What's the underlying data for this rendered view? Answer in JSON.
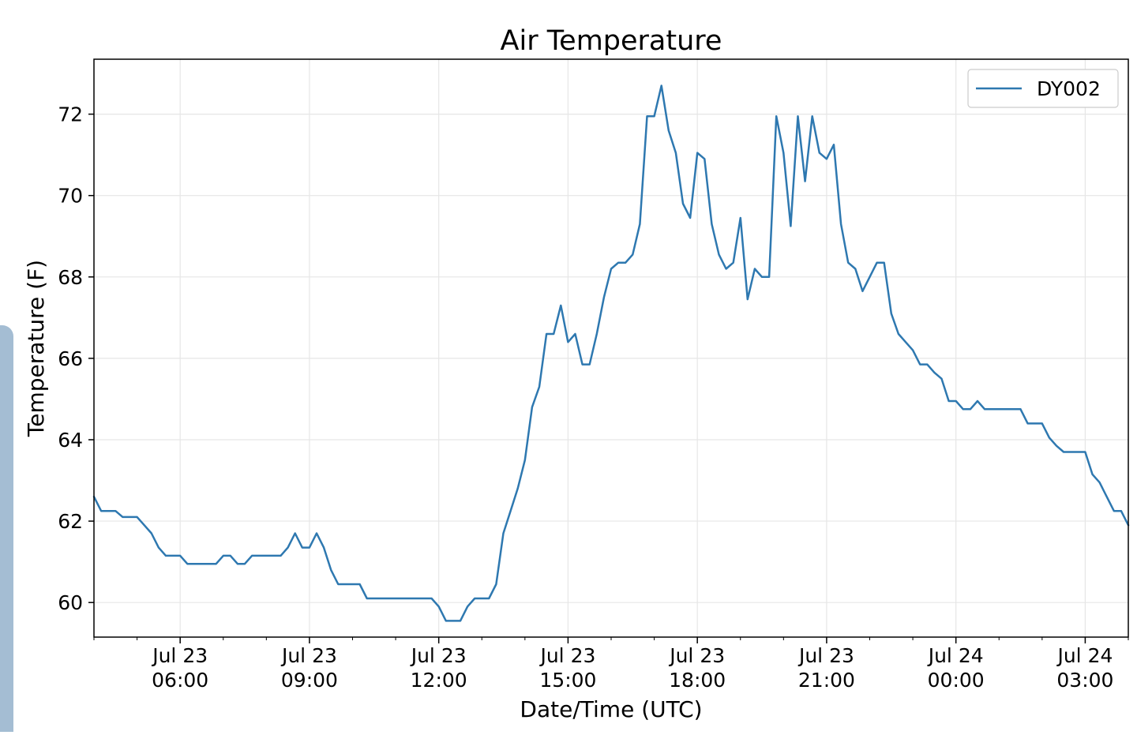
{
  "chart_data": {
    "type": "line",
    "title": "Air Temperature",
    "xlabel": "Date/Time (UTC)",
    "ylabel": "Temperature (F)",
    "x_ticks": [
      {
        "t": "2023-07-23T06:00",
        "line1": "Jul 23",
        "line2": "06:00"
      },
      {
        "t": "2023-07-23T09:00",
        "line1": "Jul 23",
        "line2": "09:00"
      },
      {
        "t": "2023-07-23T12:00",
        "line1": "Jul 23",
        "line2": "12:00"
      },
      {
        "t": "2023-07-23T15:00",
        "line1": "Jul 23",
        "line2": "15:00"
      },
      {
        "t": "2023-07-23T18:00",
        "line1": "Jul 23",
        "line2": "18:00"
      },
      {
        "t": "2023-07-23T21:00",
        "line1": "Jul 23",
        "line2": "21:00"
      },
      {
        "t": "2023-07-24T00:00",
        "line1": "Jul 24",
        "line2": "00:00"
      },
      {
        "t": "2023-07-24T03:00",
        "line1": "Jul 24",
        "line2": "03:00"
      }
    ],
    "y_ticks": [
      60,
      62,
      64,
      66,
      68,
      70,
      72
    ],
    "xlim": [
      "2023-07-23T04:00",
      "2023-07-24T04:00"
    ],
    "ylim": [
      59.15,
      73.35
    ],
    "grid": true,
    "legend_position": "top-right",
    "line_color": "#2e78b0",
    "series": [
      {
        "name": "DY002",
        "x": [
          "2023-07-23T04:00",
          "2023-07-23T04:10",
          "2023-07-23T04:20",
          "2023-07-23T04:30",
          "2023-07-23T04:40",
          "2023-07-23T04:50",
          "2023-07-23T05:00",
          "2023-07-23T05:10",
          "2023-07-23T05:20",
          "2023-07-23T05:30",
          "2023-07-23T05:40",
          "2023-07-23T05:50",
          "2023-07-23T06:00",
          "2023-07-23T06:10",
          "2023-07-23T06:20",
          "2023-07-23T06:30",
          "2023-07-23T06:40",
          "2023-07-23T06:50",
          "2023-07-23T07:00",
          "2023-07-23T07:10",
          "2023-07-23T07:20",
          "2023-07-23T07:30",
          "2023-07-23T07:40",
          "2023-07-23T07:50",
          "2023-07-23T08:00",
          "2023-07-23T08:10",
          "2023-07-23T08:20",
          "2023-07-23T08:30",
          "2023-07-23T08:40",
          "2023-07-23T08:50",
          "2023-07-23T09:00",
          "2023-07-23T09:10",
          "2023-07-23T09:20",
          "2023-07-23T09:30",
          "2023-07-23T09:40",
          "2023-07-23T09:50",
          "2023-07-23T10:00",
          "2023-07-23T10:10",
          "2023-07-23T10:20",
          "2023-07-23T10:30",
          "2023-07-23T10:40",
          "2023-07-23T10:50",
          "2023-07-23T11:00",
          "2023-07-23T11:10",
          "2023-07-23T11:20",
          "2023-07-23T11:30",
          "2023-07-23T11:40",
          "2023-07-23T11:50",
          "2023-07-23T12:00",
          "2023-07-23T12:10",
          "2023-07-23T12:20",
          "2023-07-23T12:30",
          "2023-07-23T12:40",
          "2023-07-23T12:50",
          "2023-07-23T13:00",
          "2023-07-23T13:10",
          "2023-07-23T13:20",
          "2023-07-23T13:30",
          "2023-07-23T13:40",
          "2023-07-23T13:50",
          "2023-07-23T14:00",
          "2023-07-23T14:10",
          "2023-07-23T14:20",
          "2023-07-23T14:30",
          "2023-07-23T14:40",
          "2023-07-23T14:50",
          "2023-07-23T15:00",
          "2023-07-23T15:10",
          "2023-07-23T15:20",
          "2023-07-23T15:30",
          "2023-07-23T15:40",
          "2023-07-23T15:50",
          "2023-07-23T16:00",
          "2023-07-23T16:10",
          "2023-07-23T16:20",
          "2023-07-23T16:30",
          "2023-07-23T16:40",
          "2023-07-23T16:50",
          "2023-07-23T17:00",
          "2023-07-23T17:10",
          "2023-07-23T17:20",
          "2023-07-23T17:30",
          "2023-07-23T17:40",
          "2023-07-23T17:50",
          "2023-07-23T18:00",
          "2023-07-23T18:10",
          "2023-07-23T18:20",
          "2023-07-23T18:30",
          "2023-07-23T18:40",
          "2023-07-23T18:50",
          "2023-07-23T19:00",
          "2023-07-23T19:10",
          "2023-07-23T19:20",
          "2023-07-23T19:30",
          "2023-07-23T19:40",
          "2023-07-23T19:50",
          "2023-07-23T20:00",
          "2023-07-23T20:10",
          "2023-07-23T20:20",
          "2023-07-23T20:30",
          "2023-07-23T20:40",
          "2023-07-23T20:50",
          "2023-07-23T21:00",
          "2023-07-23T21:10",
          "2023-07-23T21:20",
          "2023-07-23T21:30",
          "2023-07-23T21:40",
          "2023-07-23T21:50",
          "2023-07-23T22:00",
          "2023-07-23T22:10",
          "2023-07-23T22:20",
          "2023-07-23T22:30",
          "2023-07-23T22:40",
          "2023-07-23T22:50",
          "2023-07-23T23:00",
          "2023-07-23T23:10",
          "2023-07-23T23:20",
          "2023-07-23T23:30",
          "2023-07-23T23:40",
          "2023-07-23T23:50",
          "2023-07-24T00:00",
          "2023-07-24T00:10",
          "2023-07-24T00:20",
          "2023-07-24T00:30",
          "2023-07-24T00:40",
          "2023-07-24T00:50",
          "2023-07-24T01:00",
          "2023-07-24T01:10",
          "2023-07-24T01:20",
          "2023-07-24T01:30",
          "2023-07-24T01:40",
          "2023-07-24T01:50",
          "2023-07-24T02:00",
          "2023-07-24T02:10",
          "2023-07-24T02:20",
          "2023-07-24T02:30",
          "2023-07-24T02:40",
          "2023-07-24T02:50",
          "2023-07-24T03:00",
          "2023-07-24T03:10",
          "2023-07-24T03:20",
          "2023-07-24T03:30",
          "2023-07-24T03:40",
          "2023-07-24T03:50",
          "2023-07-24T04:00"
        ],
        "y": [
          62.6,
          62.25,
          62.25,
          62.25,
          62.1,
          62.1,
          62.1,
          61.9,
          61.7,
          61.35,
          61.15,
          61.15,
          61.15,
          60.95,
          60.95,
          60.95,
          60.95,
          60.95,
          61.15,
          61.15,
          60.95,
          60.95,
          61.15,
          61.15,
          61.15,
          61.15,
          61.15,
          61.35,
          61.7,
          61.35,
          61.35,
          61.7,
          61.35,
          60.8,
          60.45,
          60.45,
          60.45,
          60.45,
          60.1,
          60.1,
          60.1,
          60.1,
          60.1,
          60.1,
          60.1,
          60.1,
          60.1,
          60.1,
          59.9,
          59.55,
          59.55,
          59.55,
          59.9,
          60.1,
          60.1,
          60.1,
          60.45,
          61.7,
          62.25,
          62.8,
          63.5,
          64.8,
          65.3,
          66.6,
          66.6,
          67.3,
          66.4,
          66.6,
          65.85,
          65.85,
          66.6,
          67.5,
          68.2,
          68.35,
          68.35,
          68.55,
          69.3,
          71.95,
          71.95,
          72.7,
          71.6,
          71.05,
          69.8,
          69.45,
          71.05,
          70.9,
          69.3,
          68.55,
          68.2,
          68.35,
          69.45,
          67.45,
          68.2,
          68.0,
          68.0,
          71.95,
          71.05,
          69.25,
          71.95,
          70.35,
          71.95,
          71.05,
          70.9,
          71.25,
          69.3,
          68.35,
          68.2,
          67.65,
          68.0,
          68.35,
          68.35,
          67.1,
          66.6,
          66.4,
          66.2,
          65.85,
          65.85,
          65.65,
          65.5,
          64.95,
          64.95,
          64.75,
          64.75,
          64.95,
          64.75,
          64.75,
          64.75,
          64.75,
          64.75,
          64.75,
          64.4,
          64.4,
          64.4,
          64.05,
          63.85,
          63.7,
          63.7,
          63.7,
          63.7,
          63.15,
          62.95,
          62.6,
          62.25,
          62.25,
          61.9
        ]
      }
    ]
  }
}
